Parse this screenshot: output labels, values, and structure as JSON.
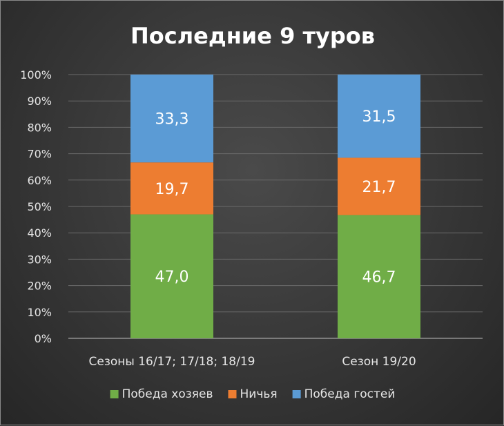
{
  "chart_data": {
    "type": "bar",
    "stacked": true,
    "percent_stacked": true,
    "title": "Последние 9 туров",
    "categories": [
      "Сезоны 16/17; 17/18; 18/19",
      "Сезон 19/20"
    ],
    "series": [
      {
        "name": "Победа хозяев",
        "values": [
          47.0,
          46.7
        ],
        "labels": [
          "47,0",
          "46,7"
        ],
        "color": "#70ad47"
      },
      {
        "name": "Ничья",
        "values": [
          19.7,
          21.7
        ],
        "labels": [
          "19,7",
          "21,7"
        ],
        "color": "#ed7d31"
      },
      {
        "name": "Победа гостей",
        "values": [
          33.3,
          31.5
        ],
        "labels": [
          "33,3",
          "31,5"
        ],
        "color": "#5b9bd5"
      }
    ],
    "ylim": [
      0,
      100
    ],
    "yticks": [
      "0%",
      "10%",
      "20%",
      "30%",
      "40%",
      "50%",
      "60%",
      "70%",
      "80%",
      "90%",
      "100%"
    ],
    "grid": true,
    "legend": "bottom"
  }
}
